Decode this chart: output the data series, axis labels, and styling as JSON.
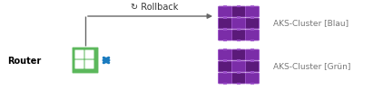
{
  "fig_width": 4.22,
  "fig_height": 0.99,
  "dpi": 100,
  "bg_color": "#ffffff",
  "router_label": "Router",
  "router_green": "#5cb85c",
  "router_blue_dark": "#1a7bbf",
  "router_blue_light": "#4ab0e8",
  "rollback_text": "↻ Rollback",
  "cluster_label_blau": "AKS-Cluster [Blau]",
  "cluster_label_gruen": "AKS-Cluster [Grün]",
  "purple_dark": "#5B1A7A",
  "purple_mid": "#7B2DA8",
  "purple_light": "#9B4FC8",
  "text_color": "#777777",
  "arrow_color": "#666666"
}
